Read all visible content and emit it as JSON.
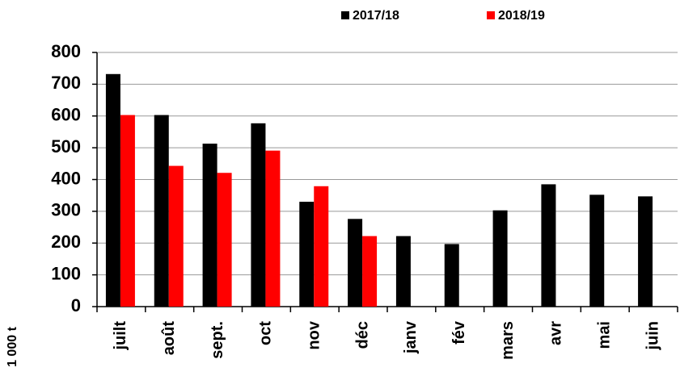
{
  "chart_data": {
    "type": "bar",
    "y_label": "1 000 t",
    "categories": [
      "juilt",
      "août",
      "sept.",
      "oct",
      "nov",
      "déc",
      "janv",
      "fév",
      "mars",
      "avr",
      "mai",
      "juin"
    ],
    "series": [
      {
        "name": "2017/18",
        "color": "#000000",
        "values": [
          732,
          603,
          513,
          577,
          330,
          276,
          222,
          197,
          303,
          385,
          352,
          347
        ]
      },
      {
        "name": "2018/19",
        "color": "#ff0000",
        "values": [
          603,
          443,
          421,
          491,
          379,
          222,
          null,
          null,
          null,
          null,
          null,
          null
        ]
      }
    ],
    "ylim": [
      0,
      800
    ],
    "yticks": [
      0,
      100,
      200,
      300,
      400,
      500,
      600,
      700,
      800
    ],
    "grid": true,
    "legend": "top"
  }
}
